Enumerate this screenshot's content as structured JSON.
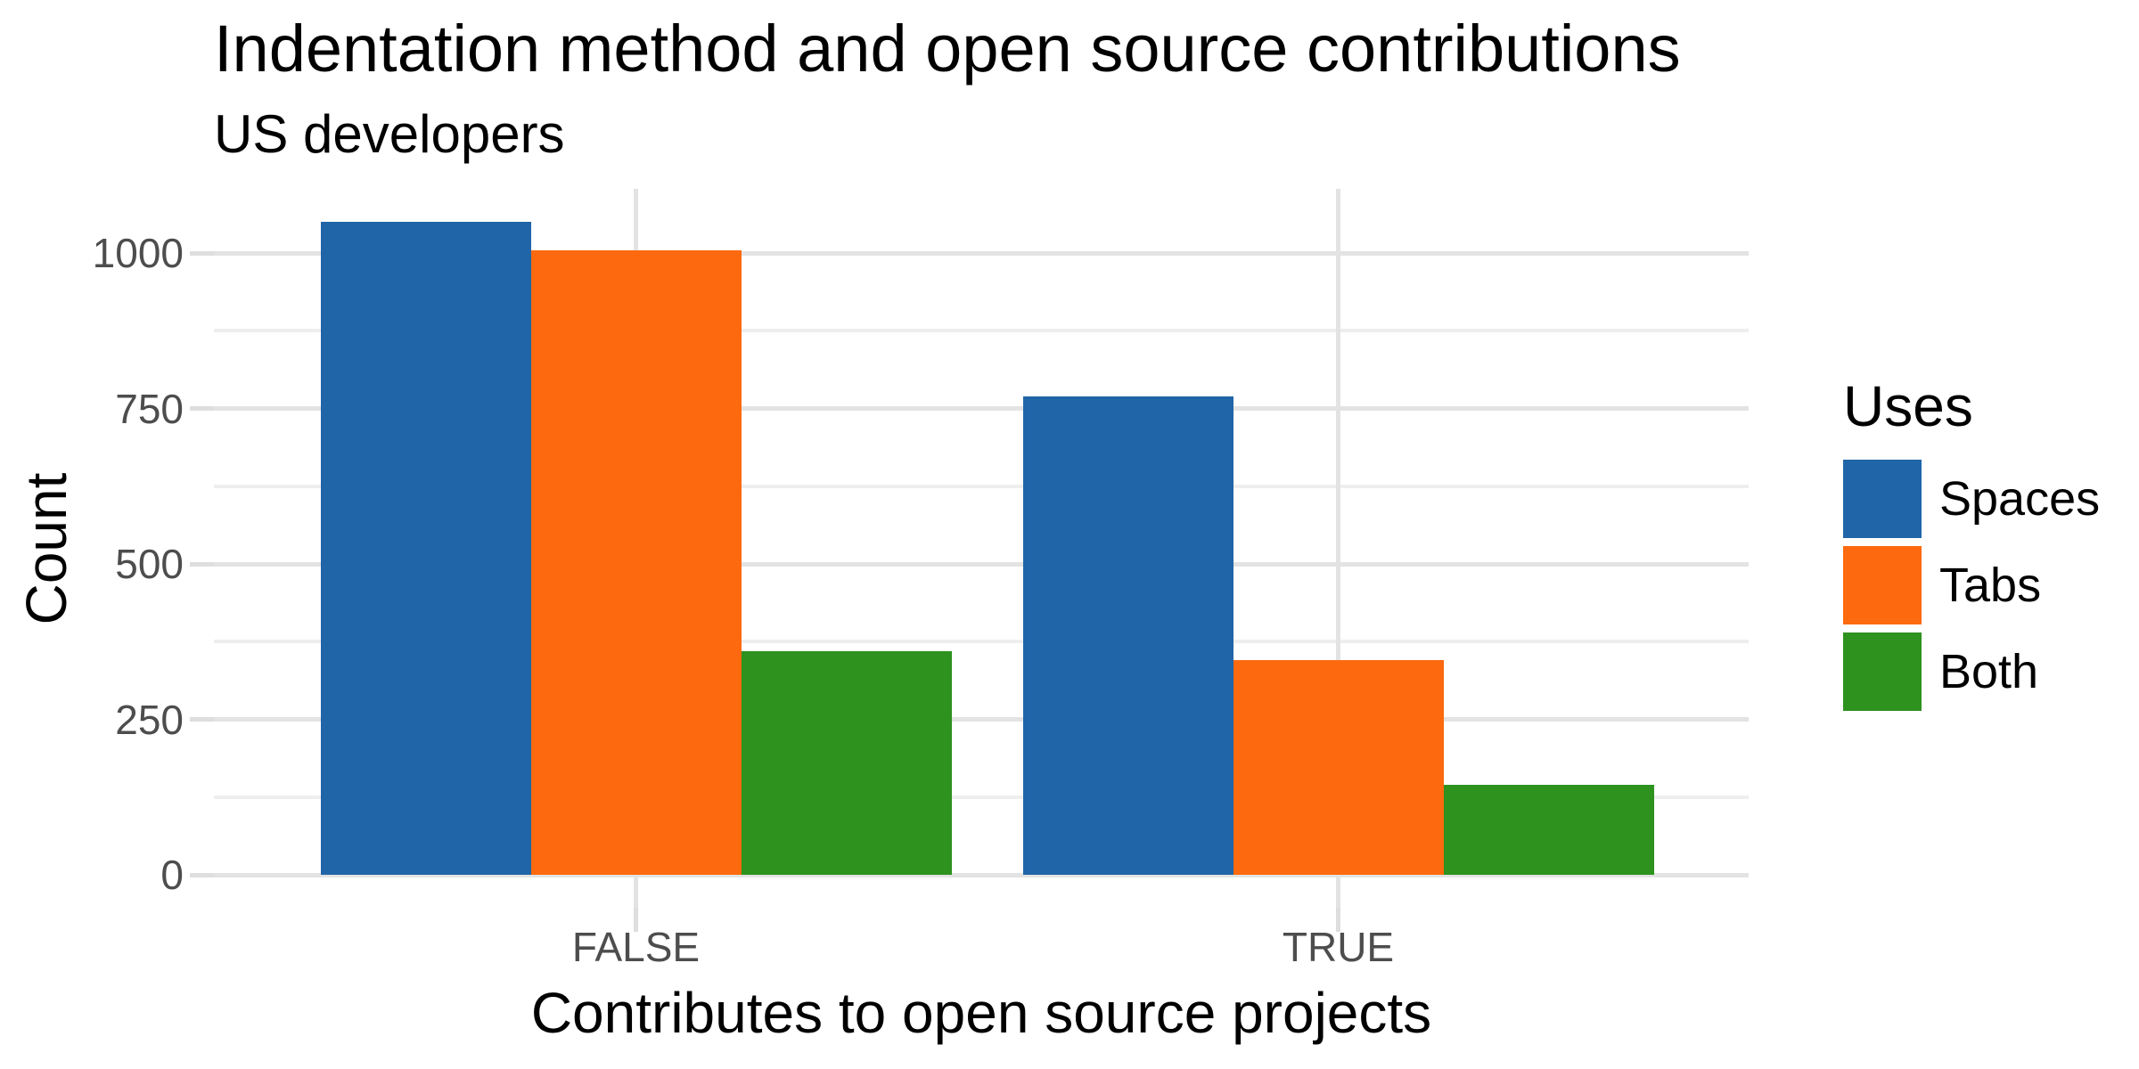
{
  "figure": {
    "title": "Indentation method and open source contributions",
    "subtitle": "US developers"
  },
  "chart_data": {
    "type": "bar",
    "grouped": true,
    "title": "Indentation method and open source contributions",
    "subtitle": "US developers",
    "xlabel": "Contributes to open source projects",
    "ylabel": "Count",
    "categories": [
      "FALSE",
      "TRUE"
    ],
    "series": [
      {
        "name": "Spaces",
        "color": "#2065a8",
        "values": [
          1050,
          770
        ]
      },
      {
        "name": "Tabs",
        "color": "#fc690e",
        "values": [
          1005,
          345
        ]
      },
      {
        "name": "Both",
        "color": "#2d921e",
        "values": [
          360,
          145
        ]
      }
    ],
    "y_ticks": [
      0,
      250,
      500,
      750,
      1000
    ],
    "y_minor_ticks": [
      125,
      375,
      625,
      875
    ],
    "ylim": [
      0,
      1050
    ],
    "grid": "light-gray horizontal major+minor, vertical major at category centers",
    "legend_title": "Uses",
    "legend_position": "right",
    "colors": {
      "grid_major": "#e3e3e3",
      "grid_minor": "#eeeeee",
      "tick_mark": "#dedede",
      "tick_text": "#4d4d4d",
      "title_text": "#000000",
      "background": "#ffffff"
    }
  }
}
